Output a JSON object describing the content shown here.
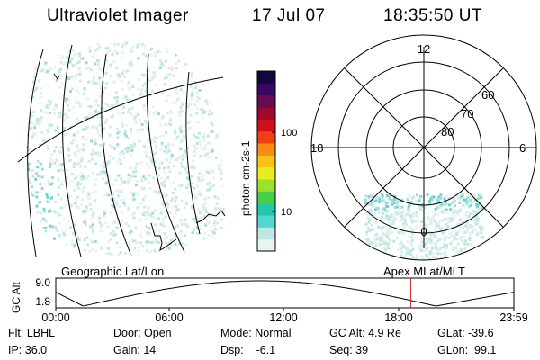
{
  "header": {
    "title": "Ultraviolet Imager",
    "date": "17 Jul 07",
    "time": "18:35:50 UT"
  },
  "colorbar": {
    "label": "photon cm-2s-1",
    "ticks": [
      "100",
      "10"
    ],
    "colors": [
      "#e8f4f2",
      "#bfe6e2",
      "#55d6d0",
      "#22c8a8",
      "#44d04c",
      "#9ee030",
      "#e6ee22",
      "#f6c418",
      "#f88c10",
      "#ee4010",
      "#d0101a",
      "#a00828",
      "#6a0a50",
      "#3a0860",
      "#120840"
    ]
  },
  "polar": {
    "hour_labels": {
      "top": "12",
      "left": "18",
      "right": "6",
      "bottom": "0"
    },
    "lat_labels": [
      "60",
      "70",
      "80"
    ]
  },
  "panel_labels": {
    "left": "Geographic Lat/Lon",
    "right": "Apex MLat/MLT"
  },
  "altplot": {
    "ylabel": "GC Alt",
    "yticks": [
      "9.0",
      "1.8"
    ],
    "xticks": [
      "00:00",
      "06:00",
      "12:00",
      "18:00",
      "23:59"
    ],
    "current_time_hours": 18.6,
    "cursor_color": "#cc3333"
  },
  "status": {
    "row1": {
      "flt": "Flt: LBHL",
      "door": "Door: Open",
      "mode": "Mode: Normal",
      "gcalt": "GC Alt: 4.9 Re",
      "glat": "GLat: -39.6"
    },
    "row2": {
      "ip": "IP: 36.0",
      "gain": "Gain: 14",
      "dsp": "Dsp:    -6.1",
      "seq": "Seq: 39",
      "glon": "GLon:  99.1"
    }
  }
}
